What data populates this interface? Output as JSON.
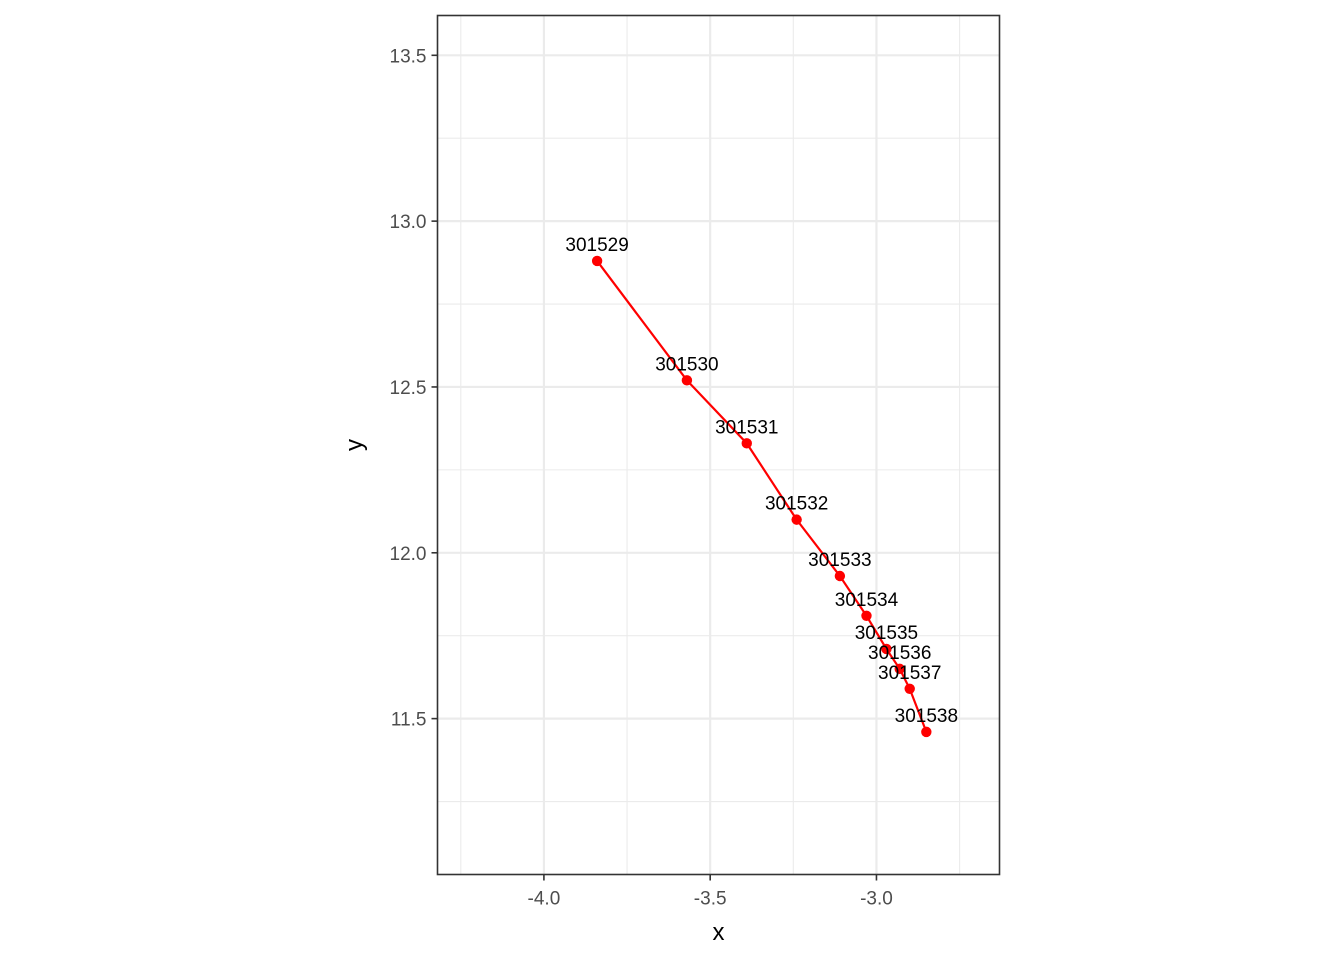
{
  "chart_data": {
    "type": "line",
    "title": "",
    "xlabel": "x",
    "ylabel": "y",
    "xlim": [
      -4.32,
      -2.63
    ],
    "ylim": [
      11.03,
      13.62
    ],
    "x_ticks": [
      -4.0,
      -3.5,
      -3.0
    ],
    "x_tick_labels": [
      "-4.0",
      "-3.5",
      "-3.0"
    ],
    "x_minor_ticks": [
      -4.25,
      -3.75,
      -3.25,
      -2.75
    ],
    "y_ticks": [
      11.5,
      12.0,
      12.5,
      13.0,
      13.5
    ],
    "y_tick_labels": [
      "11.5",
      "12.0",
      "12.5",
      "13.0",
      "13.5"
    ],
    "y_minor_ticks": [
      11.25,
      11.75,
      12.25,
      12.75,
      13.25
    ],
    "grid": true,
    "legend": "none",
    "series": [
      {
        "color": "#ff0000",
        "points": [
          {
            "x": -3.84,
            "y": 12.88,
            "label": "301529"
          },
          {
            "x": -3.57,
            "y": 12.52,
            "label": "301530"
          },
          {
            "x": -3.39,
            "y": 12.33,
            "label": "301531"
          },
          {
            "x": -3.24,
            "y": 12.1,
            "label": "301532"
          },
          {
            "x": -3.11,
            "y": 11.93,
            "label": "301533"
          },
          {
            "x": -3.03,
            "y": 11.81,
            "label": "301534"
          },
          {
            "x": -2.97,
            "y": 11.71,
            "label": "301535"
          },
          {
            "x": -2.93,
            "y": 11.65,
            "label": "301536"
          },
          {
            "x": -2.9,
            "y": 11.59,
            "label": "301537"
          },
          {
            "x": -2.85,
            "y": 11.46,
            "label": "301538"
          }
        ]
      }
    ]
  }
}
